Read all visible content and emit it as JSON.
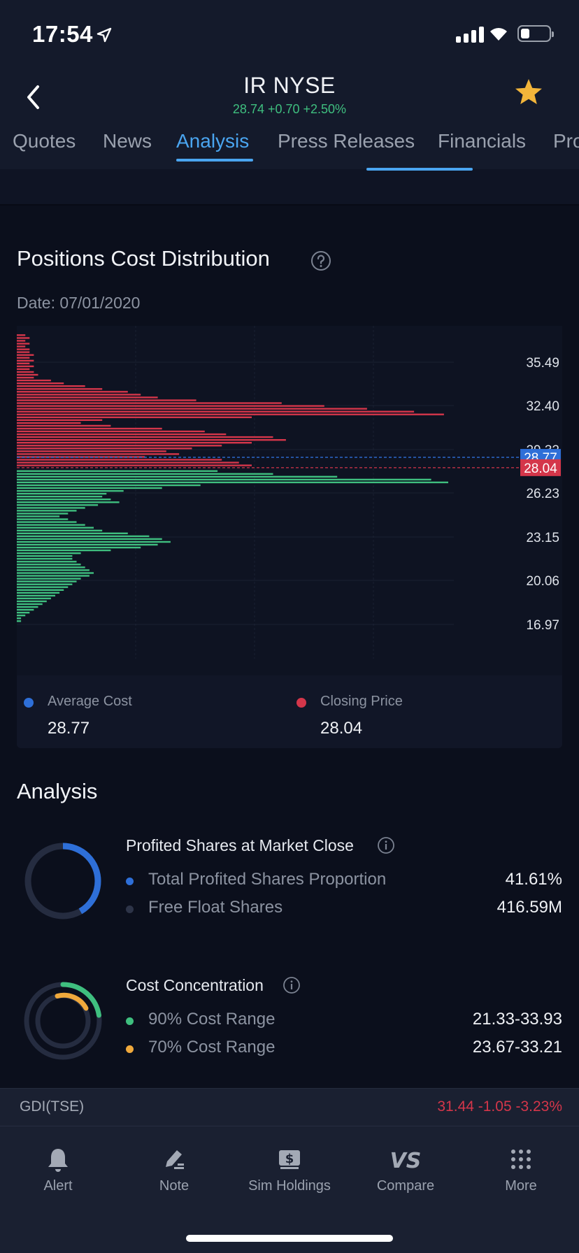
{
  "status_bar": {
    "time": "17:54"
  },
  "header": {
    "title": "IR NYSE",
    "quote": "28.74 +0.70 +2.50%",
    "tabs": [
      "Quotes",
      "News",
      "Analysis",
      "Press Releases",
      "Financials",
      "Pro"
    ],
    "active_tab": "Analysis"
  },
  "section": {
    "title": "Positions Cost Distribution",
    "date": "Date: 07/01/2020"
  },
  "chart_data": {
    "type": "bar",
    "orientation": "horizontal",
    "y_ticks": [
      "35.49",
      "32.40",
      "29.32",
      "26.23",
      "23.15",
      "20.06",
      "16.97"
    ],
    "ylim": [
      16.97,
      37.0
    ],
    "average_cost": {
      "value": 28.77,
      "label": "28.77",
      "color": "#2e6fd8"
    },
    "closing_price": {
      "value": 28.04,
      "label": "28.04",
      "color": "#d4364a"
    },
    "colors": {
      "above_close": "#d4364a",
      "below_close": "#3fbf7f"
    },
    "distribution": [
      {
        "price": 37.4,
        "volume": 2
      },
      {
        "price": 37.2,
        "volume": 3
      },
      {
        "price": 37.0,
        "volume": 2
      },
      {
        "price": 36.8,
        "volume": 3
      },
      {
        "price": 36.6,
        "volume": 2
      },
      {
        "price": 36.4,
        "volume": 3
      },
      {
        "price": 36.2,
        "volume": 3
      },
      {
        "price": 36.0,
        "volume": 4
      },
      {
        "price": 35.8,
        "volume": 3
      },
      {
        "price": 35.6,
        "volume": 4
      },
      {
        "price": 35.4,
        "volume": 3
      },
      {
        "price": 35.2,
        "volume": 4
      },
      {
        "price": 35.0,
        "volume": 3
      },
      {
        "price": 34.8,
        "volume": 4
      },
      {
        "price": 34.6,
        "volume": 5
      },
      {
        "price": 34.4,
        "volume": 4
      },
      {
        "price": 34.2,
        "volume": 8
      },
      {
        "price": 34.0,
        "volume": 11
      },
      {
        "price": 33.8,
        "volume": 16
      },
      {
        "price": 33.6,
        "volume": 20
      },
      {
        "price": 33.4,
        "volume": 26
      },
      {
        "price": 33.2,
        "volume": 29
      },
      {
        "price": 33.0,
        "volume": 33
      },
      {
        "price": 32.8,
        "volume": 42
      },
      {
        "price": 32.6,
        "volume": 62
      },
      {
        "price": 32.4,
        "volume": 72
      },
      {
        "price": 32.2,
        "volume": 82
      },
      {
        "price": 32.0,
        "volume": 93
      },
      {
        "price": 31.8,
        "volume": 100
      },
      {
        "price": 31.6,
        "volume": 55
      },
      {
        "price": 31.4,
        "volume": 20
      },
      {
        "price": 31.2,
        "volume": 15
      },
      {
        "price": 31.0,
        "volume": 22
      },
      {
        "price": 30.8,
        "volume": 34
      },
      {
        "price": 30.6,
        "volume": 44
      },
      {
        "price": 30.4,
        "volume": 49
      },
      {
        "price": 30.2,
        "volume": 60
      },
      {
        "price": 30.0,
        "volume": 63
      },
      {
        "price": 29.8,
        "volume": 55
      },
      {
        "price": 29.6,
        "volume": 48
      },
      {
        "price": 29.4,
        "volume": 41
      },
      {
        "price": 29.2,
        "volume": 35
      },
      {
        "price": 29.0,
        "volume": 38
      },
      {
        "price": 28.8,
        "volume": 30
      },
      {
        "price": 28.6,
        "volume": 48
      },
      {
        "price": 28.4,
        "volume": 52
      },
      {
        "price": 28.2,
        "volume": 55
      },
      {
        "price": 27.8,
        "volume": 47
      },
      {
        "price": 27.6,
        "volume": 60
      },
      {
        "price": 27.4,
        "volume": 75
      },
      {
        "price": 27.2,
        "volume": 97
      },
      {
        "price": 27.0,
        "volume": 101
      },
      {
        "price": 26.8,
        "volume": 43
      },
      {
        "price": 26.6,
        "volume": 34
      },
      {
        "price": 26.4,
        "volume": 25
      },
      {
        "price": 26.2,
        "volume": 21
      },
      {
        "price": 26.0,
        "volume": 20
      },
      {
        "price": 25.8,
        "volume": 22
      },
      {
        "price": 25.6,
        "volume": 24
      },
      {
        "price": 25.4,
        "volume": 19
      },
      {
        "price": 25.2,
        "volume": 16
      },
      {
        "price": 25.0,
        "volume": 14
      },
      {
        "price": 24.8,
        "volume": 12
      },
      {
        "price": 24.6,
        "volume": 10
      },
      {
        "price": 24.4,
        "volume": 12
      },
      {
        "price": 24.2,
        "volume": 14
      },
      {
        "price": 24.0,
        "volume": 16
      },
      {
        "price": 23.8,
        "volume": 18
      },
      {
        "price": 23.6,
        "volume": 20
      },
      {
        "price": 23.4,
        "volume": 26
      },
      {
        "price": 23.2,
        "volume": 31
      },
      {
        "price": 23.0,
        "volume": 34
      },
      {
        "price": 22.8,
        "volume": 36
      },
      {
        "price": 22.6,
        "volume": 33
      },
      {
        "price": 22.4,
        "volume": 29
      },
      {
        "price": 22.2,
        "volume": 22
      },
      {
        "price": 22.0,
        "volume": 15
      },
      {
        "price": 21.8,
        "volume": 13
      },
      {
        "price": 21.6,
        "volume": 13
      },
      {
        "price": 21.4,
        "volume": 14
      },
      {
        "price": 21.2,
        "volume": 15
      },
      {
        "price": 21.0,
        "volume": 16
      },
      {
        "price": 20.8,
        "volume": 17
      },
      {
        "price": 20.6,
        "volume": 18
      },
      {
        "price": 20.4,
        "volume": 17
      },
      {
        "price": 20.2,
        "volume": 15
      },
      {
        "price": 20.0,
        "volume": 14
      },
      {
        "price": 19.8,
        "volume": 13
      },
      {
        "price": 19.6,
        "volume": 12
      },
      {
        "price": 19.4,
        "volume": 11
      },
      {
        "price": 19.2,
        "volume": 10
      },
      {
        "price": 19.0,
        "volume": 9
      },
      {
        "price": 18.8,
        "volume": 8
      },
      {
        "price": 18.6,
        "volume": 7
      },
      {
        "price": 18.4,
        "volume": 6
      },
      {
        "price": 18.2,
        "volume": 5
      },
      {
        "price": 18.0,
        "volume": 4
      },
      {
        "price": 17.8,
        "volume": 3
      },
      {
        "price": 17.6,
        "volume": 2
      },
      {
        "price": 17.4,
        "volume": 1
      },
      {
        "price": 17.2,
        "volume": 1
      }
    ]
  },
  "legend": {
    "average_cost_label": "Average Cost",
    "average_cost_value": "28.77",
    "closing_price_label": "Closing Price",
    "closing_price_value": "28.04"
  },
  "analysis": {
    "title": "Analysis",
    "profited": {
      "title": "Profited Shares at Market Close",
      "proportion": 0.4161,
      "rows": [
        {
          "label": "Total Profited Shares Proportion",
          "value": "41.61%",
          "color": "#2e6fd8"
        },
        {
          "label": "Free Float Shares",
          "value": "416.59M",
          "color": "#2d3448"
        }
      ]
    },
    "concentration": {
      "title": "Cost Concentration",
      "rows": [
        {
          "label": "90% Cost Range",
          "value": "21.33-33.93",
          "color": "#3fbf7f"
        },
        {
          "label": "70% Cost Range",
          "value": "23.67-33.21",
          "color": "#f0a93c"
        }
      ]
    }
  },
  "ticker_strip": {
    "symbol": "GDI(TSE)",
    "quote": "31.44  -1.05  -3.23%"
  },
  "bottom_nav": [
    {
      "label": "Alert",
      "icon": "bell-icon"
    },
    {
      "label": "Note",
      "icon": "pen-icon"
    },
    {
      "label": "Sim Holdings",
      "icon": "dollar-icon"
    },
    {
      "label": "Compare",
      "icon": "vs-icon"
    },
    {
      "label": "More",
      "icon": "grid-icon"
    }
  ]
}
